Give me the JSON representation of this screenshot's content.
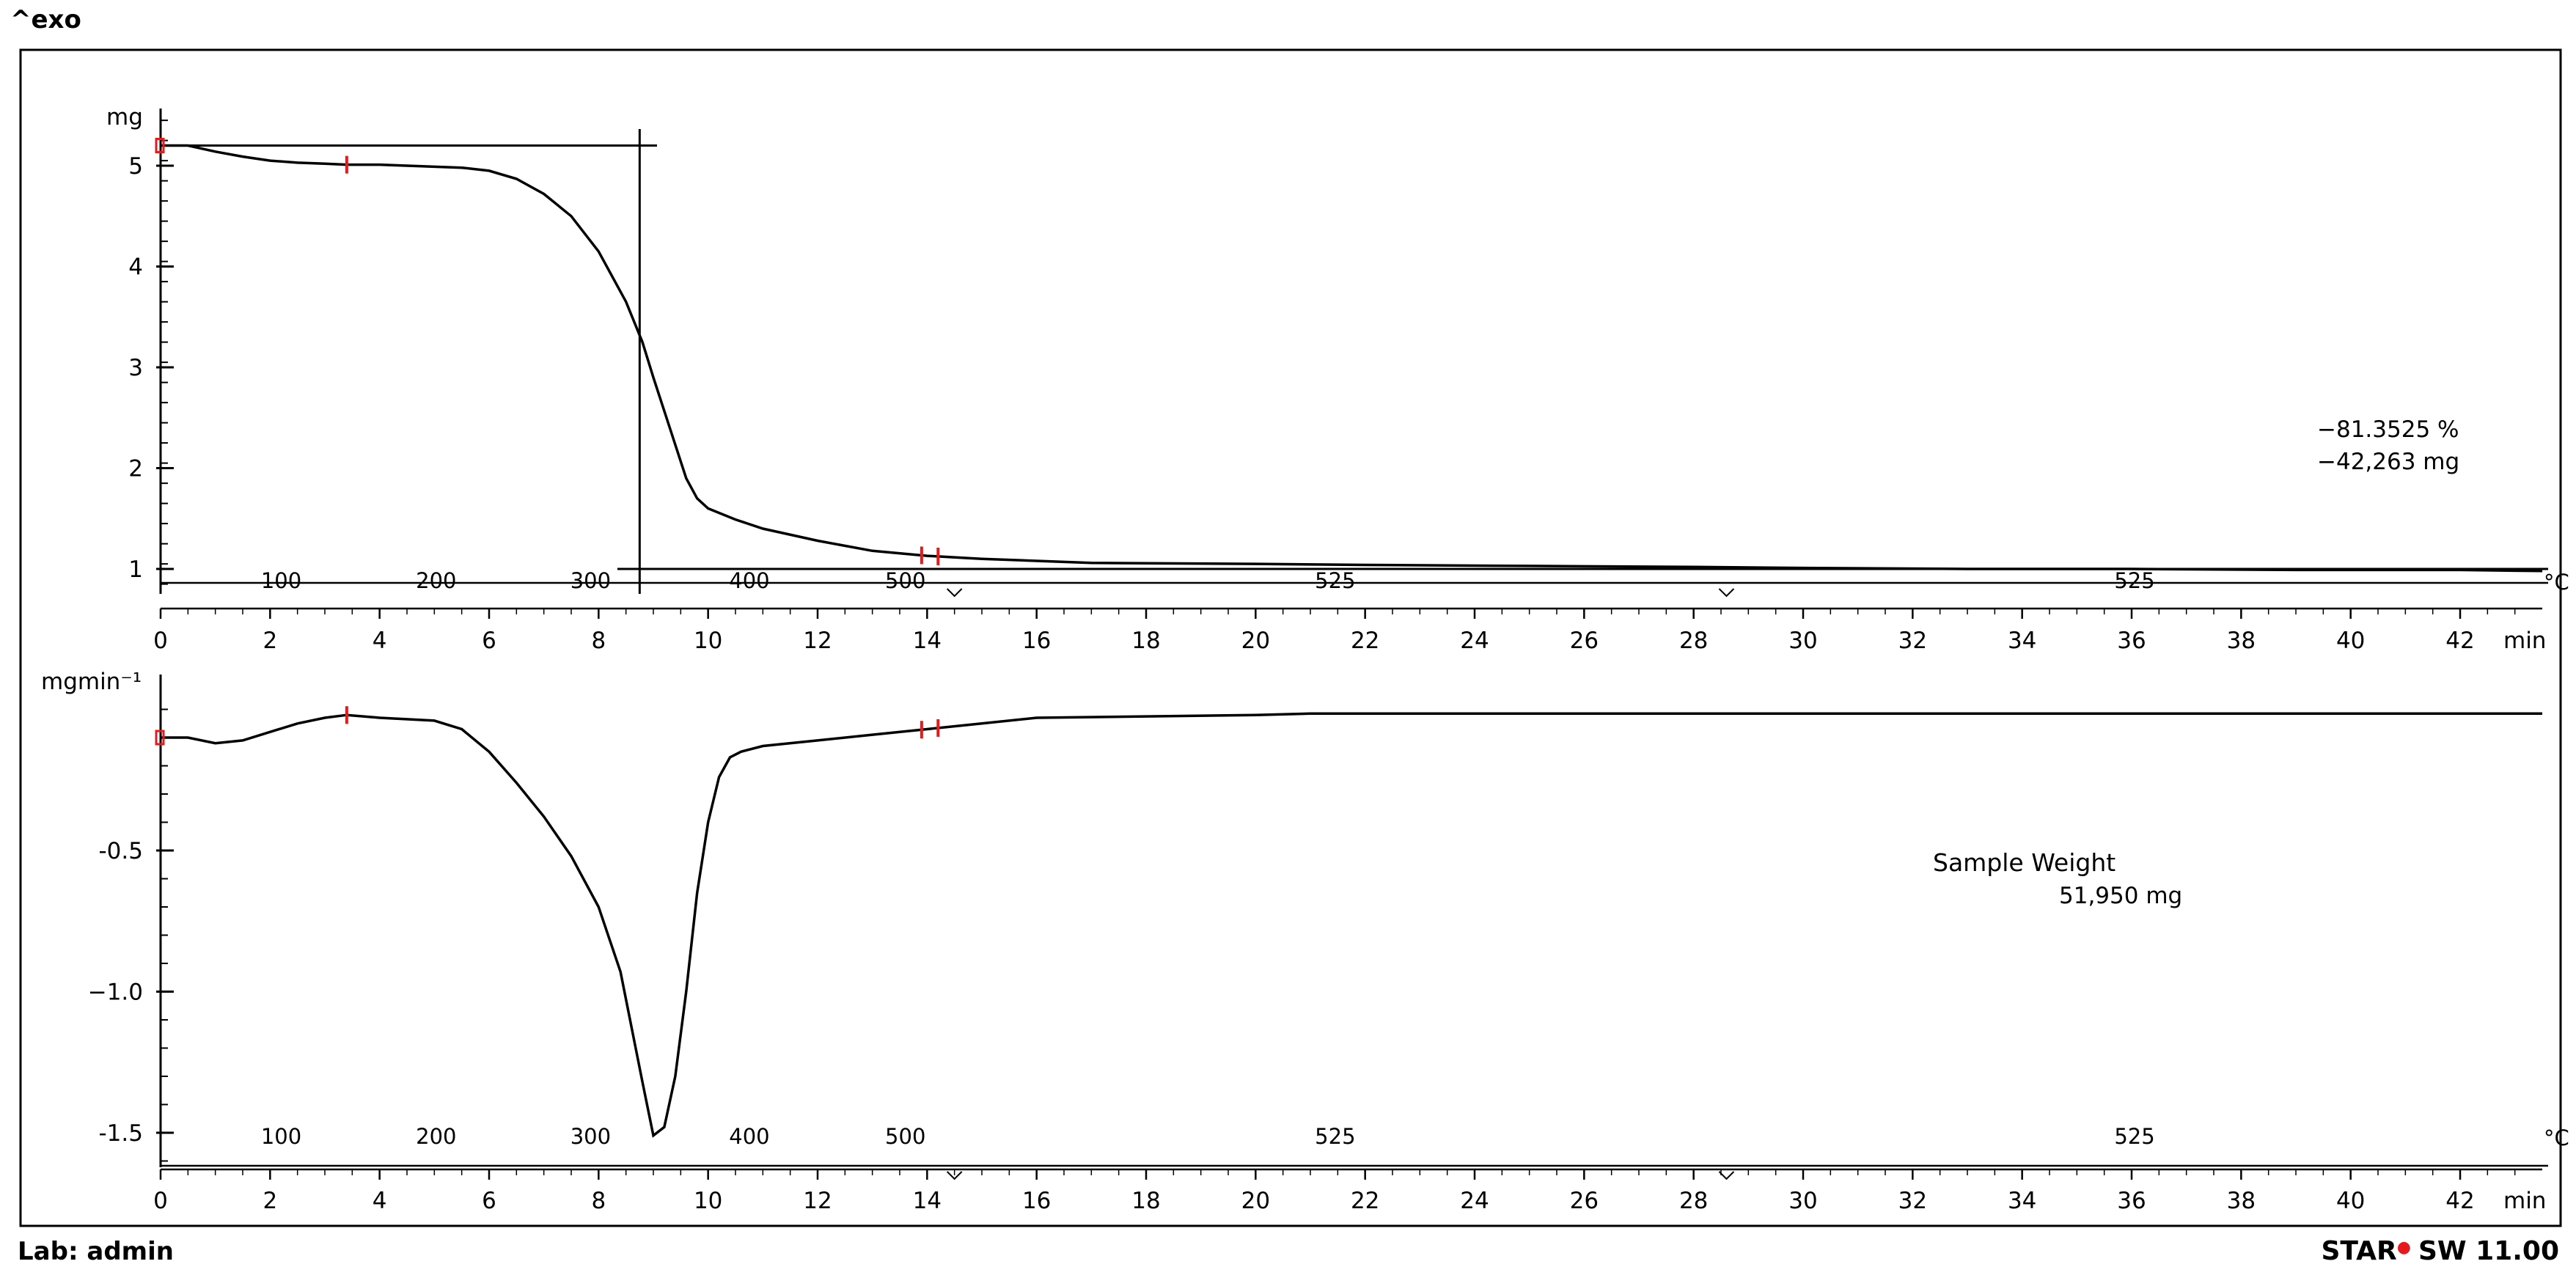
{
  "header": {
    "exo_label": "^exo"
  },
  "footer": {
    "lab": "Lab: admin",
    "software_prefix": "STAR",
    "software_suffix": "SW 11.00"
  },
  "colors": {
    "curve": "#000000",
    "marker": "#e8191b",
    "frame": "#000000"
  },
  "chart_data": [
    {
      "type": "line",
      "title": "",
      "ylabel": "mg",
      "xlabel": "min",
      "temp_unit": "°C",
      "ylim": [
        0.85,
        5.6
      ],
      "xlim": [
        0,
        43.5
      ],
      "yticks": [
        1,
        2,
        3,
        4,
        5
      ],
      "ytick_labels": [
        "1",
        "2",
        "3",
        "4",
        "5"
      ],
      "xticks": [
        0,
        2,
        4,
        6,
        8,
        10,
        12,
        14,
        16,
        18,
        20,
        22,
        24,
        26,
        28,
        30,
        32,
        34,
        36,
        38,
        40,
        42
      ],
      "temp_ticks": [
        {
          "t": 2.15,
          "label": "100"
        },
        {
          "t": 4.98,
          "label": "200"
        },
        {
          "t": 7.8,
          "label": "300"
        },
        {
          "t": 10.7,
          "label": "400"
        },
        {
          "t": 13.55,
          "label": "500"
        },
        {
          "t": 21.4,
          "label": "525"
        },
        {
          "t": 36.0,
          "label": "525"
        }
      ],
      "x": [
        0,
        0.5,
        1,
        1.5,
        2,
        2.5,
        3,
        3.4,
        4,
        5,
        5.5,
        6,
        6.5,
        7,
        7.5,
        8,
        8.5,
        8.8,
        9,
        9.3,
        9.6,
        9.8,
        10,
        10.5,
        11,
        12,
        13,
        14,
        15,
        16,
        17,
        20,
        22,
        25,
        28,
        30,
        33,
        36,
        39,
        42,
        43.5
      ],
      "y": [
        5.2,
        5.2,
        5.14,
        5.09,
        5.05,
        5.03,
        5.02,
        5.01,
        5.01,
        4.99,
        4.98,
        4.95,
        4.87,
        4.72,
        4.5,
        4.15,
        3.65,
        3.25,
        2.9,
        2.4,
        1.9,
        1.7,
        1.6,
        1.49,
        1.4,
        1.28,
        1.18,
        1.13,
        1.1,
        1.08,
        1.06,
        1.05,
        1.04,
        1.03,
        1.02,
        1.01,
        1.0,
        1.0,
        0.99,
        0.99,
        0.98
      ],
      "step_start": {
        "t": 0,
        "y": 5.2
      },
      "step_end": {
        "t": 8.75,
        "y": 3.1
      },
      "step_line_to": 9.1,
      "markers": [
        0,
        3.4,
        13.9,
        14.2
      ],
      "annotation_percent": "−81.3525 %",
      "annotation_mass": "−42,263 mg"
    },
    {
      "type": "line",
      "title": "",
      "ylabel": "mgmin⁻¹",
      "xlabel": "min",
      "temp_unit": "°C",
      "ylim": [
        -1.6,
        0.0
      ],
      "xlim": [
        0,
        43.5
      ],
      "yticks": [
        -0.5,
        -1.0,
        -1.5
      ],
      "ytick_labels": [
        "-0.5",
        "−1.0",
        "-1.5"
      ],
      "xticks": [
        0,
        2,
        4,
        6,
        8,
        10,
        12,
        14,
        16,
        18,
        20,
        22,
        24,
        26,
        28,
        30,
        32,
        34,
        36,
        38,
        40,
        42
      ],
      "temp_ticks": [
        {
          "t": 2.15,
          "label": "100"
        },
        {
          "t": 4.98,
          "label": "200"
        },
        {
          "t": 7.8,
          "label": "300"
        },
        {
          "t": 10.7,
          "label": "400"
        },
        {
          "t": 13.55,
          "label": "500"
        },
        {
          "t": 21.4,
          "label": "525"
        },
        {
          "t": 36.0,
          "label": "525"
        }
      ],
      "x": [
        0,
        0.5,
        1,
        1.5,
        2,
        2.5,
        3,
        3.4,
        4,
        5,
        5.5,
        6,
        6.5,
        7,
        7.5,
        8,
        8.4,
        8.8,
        9,
        9.2,
        9.4,
        9.6,
        9.8,
        10,
        10.2,
        10.4,
        10.6,
        11,
        12,
        13,
        14,
        15,
        16,
        20,
        21,
        30,
        43.5
      ],
      "y": [
        -0.1,
        -0.1,
        -0.12,
        -0.11,
        -0.08,
        -0.05,
        -0.03,
        -0.02,
        -0.03,
        -0.04,
        -0.07,
        -0.15,
        -0.26,
        -0.38,
        -0.52,
        -0.7,
        -0.93,
        -1.32,
        -1.51,
        -1.48,
        -1.3,
        -1.0,
        -0.65,
        -0.4,
        -0.24,
        -0.17,
        -0.15,
        -0.13,
        -0.11,
        -0.09,
        -0.07,
        -0.05,
        -0.03,
        -0.02,
        -0.015,
        -0.015,
        -0.015
      ],
      "markers": [
        0,
        3.4,
        13.9,
        14.2
      ],
      "annotation_title": "Sample Weight",
      "annotation_value": "51,950 mg"
    }
  ]
}
